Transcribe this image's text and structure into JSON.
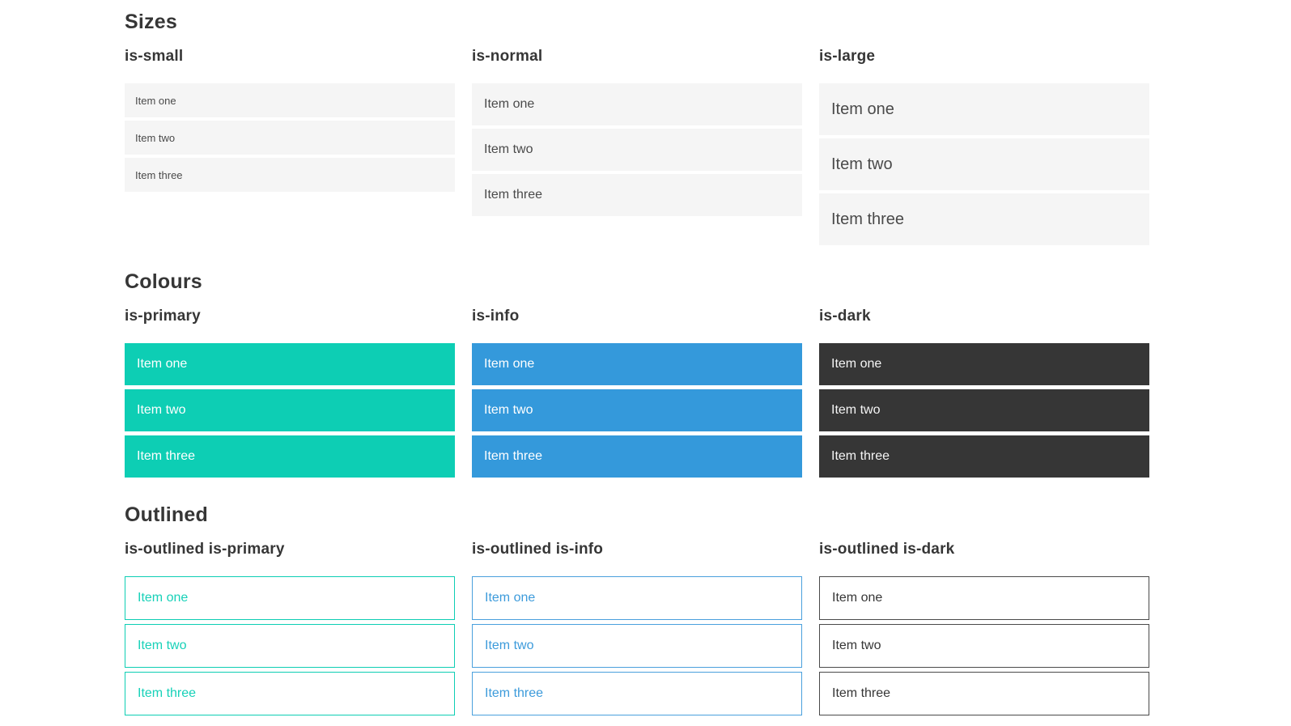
{
  "sections": [
    {
      "title": "Sizes",
      "groups": [
        {
          "label": "is-small",
          "items": [
            "Item one",
            "Item two",
            "Item three"
          ]
        },
        {
          "label": "is-normal",
          "items": [
            "Item one",
            "Item two",
            "Item three"
          ]
        },
        {
          "label": "is-large",
          "items": [
            "Item one",
            "Item two",
            "Item three"
          ]
        }
      ]
    },
    {
      "title": "Colours",
      "groups": [
        {
          "label": "is-primary",
          "items": [
            "Item one",
            "Item two",
            "Item three"
          ]
        },
        {
          "label": "is-info",
          "items": [
            "Item one",
            "Item two",
            "Item three"
          ]
        },
        {
          "label": "is-dark",
          "items": [
            "Item one",
            "Item two",
            "Item three"
          ]
        }
      ]
    },
    {
      "title": "Outlined",
      "groups": [
        {
          "label": "is-outlined is-primary",
          "items": [
            "Item one",
            "Item two",
            "Item three"
          ]
        },
        {
          "label": "is-outlined is-info",
          "items": [
            "Item one",
            "Item two",
            "Item three"
          ]
        },
        {
          "label": "is-outlined is-dark",
          "items": [
            "Item one",
            "Item two",
            "Item three"
          ]
        }
      ]
    }
  ],
  "colors": {
    "primary": "#0dceb4",
    "info": "#3499db",
    "dark": "#363636",
    "item_background": "#f5f5f5",
    "item_text": "#4a4a4a",
    "heading_text": "#363636",
    "page_background": "#ffffff"
  }
}
